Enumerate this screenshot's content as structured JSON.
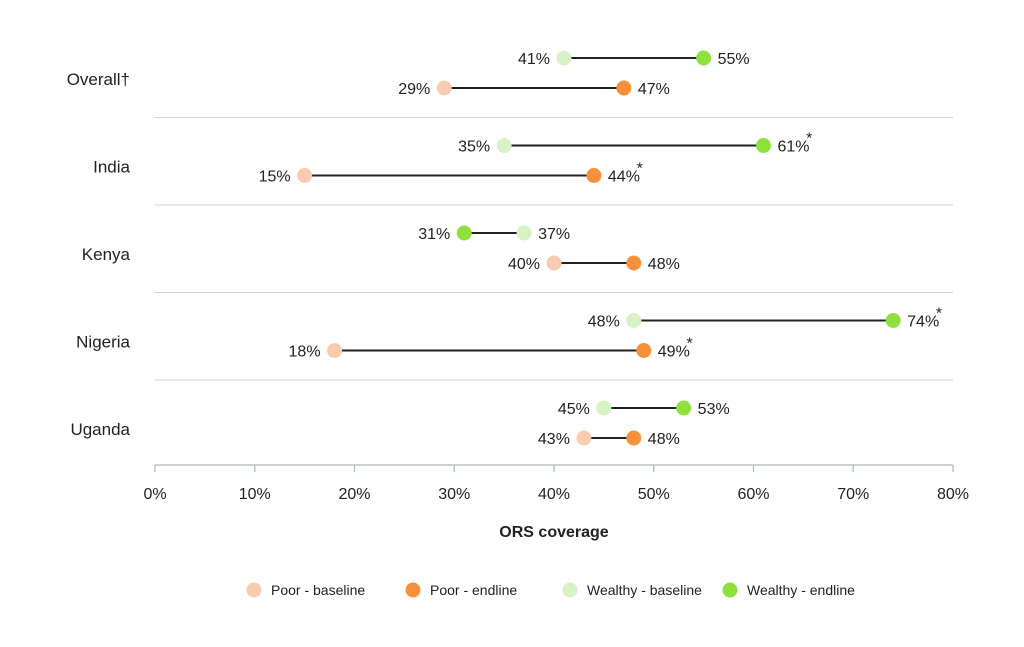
{
  "chart_data": {
    "type": "dumbbell",
    "xlabel": "ORS coverage",
    "xlim": [
      0,
      80
    ],
    "xticks": [
      0,
      10,
      20,
      30,
      40,
      50,
      60,
      70,
      80
    ],
    "xtick_labels": [
      "0%",
      "10%",
      "20%",
      "30%",
      "40%",
      "50%",
      "60%",
      "70%",
      "80%"
    ],
    "categories": [
      "Overall†",
      "India",
      "Kenya",
      "Nigeria",
      "Uganda"
    ],
    "groups": [
      {
        "category": "Overall†",
        "wealthy": {
          "baseline": 41,
          "endline": 55,
          "baseline_label": "41%",
          "endline_label": "55%",
          "star": false
        },
        "poor": {
          "baseline": 29,
          "endline": 47,
          "baseline_label": "29%",
          "endline_label": "47%",
          "star": false
        }
      },
      {
        "category": "India",
        "wealthy": {
          "baseline": 35,
          "endline": 61,
          "baseline_label": "35%",
          "endline_label": "61%",
          "star": true
        },
        "poor": {
          "baseline": 15,
          "endline": 44,
          "baseline_label": "15%",
          "endline_label": "44%",
          "star": true
        }
      },
      {
        "category": "Kenya",
        "wealthy": {
          "baseline": 37,
          "endline": 31,
          "baseline_label": "37%",
          "endline_label": "31%",
          "star": false
        },
        "poor": {
          "baseline": 40,
          "endline": 48,
          "baseline_label": "40%",
          "endline_label": "48%",
          "star": false
        }
      },
      {
        "category": "Nigeria",
        "wealthy": {
          "baseline": 48,
          "endline": 74,
          "baseline_label": "48%",
          "endline_label": "74%",
          "star": true
        },
        "poor": {
          "baseline": 18,
          "endline": 49,
          "baseline_label": "18%",
          "endline_label": "49%",
          "star": true
        }
      },
      {
        "category": "Uganda",
        "wealthy": {
          "baseline": 45,
          "endline": 53,
          "baseline_label": "45%",
          "endline_label": "53%",
          "star": false
        },
        "poor": {
          "baseline": 43,
          "endline": 48,
          "baseline_label": "43%",
          "endline_label": "48%",
          "star": false
        }
      }
    ],
    "star_symbol": "*",
    "legend": [
      {
        "key": "poor_baseline",
        "label": "Poor - baseline",
        "color": "#f9cbb0"
      },
      {
        "key": "poor_endline",
        "label": "Poor - endline",
        "color": "#f7903a"
      },
      {
        "key": "wealthy_baseline",
        "label": "Wealthy - baseline",
        "color": "#d7f2c4"
      },
      {
        "key": "wealthy_endline",
        "label": "Wealthy - endline",
        "color": "#8ee03d"
      }
    ],
    "legend_position": "bottom",
    "grid": false,
    "colors": {
      "poor_baseline": "#f9cbb0",
      "poor_endline": "#f7903a",
      "wealthy_baseline": "#d7f2c4",
      "wealthy_endline": "#8ee03d",
      "connector": "#222222",
      "separator": "#c9d4d8",
      "axis": "#aeb7bb"
    }
  }
}
